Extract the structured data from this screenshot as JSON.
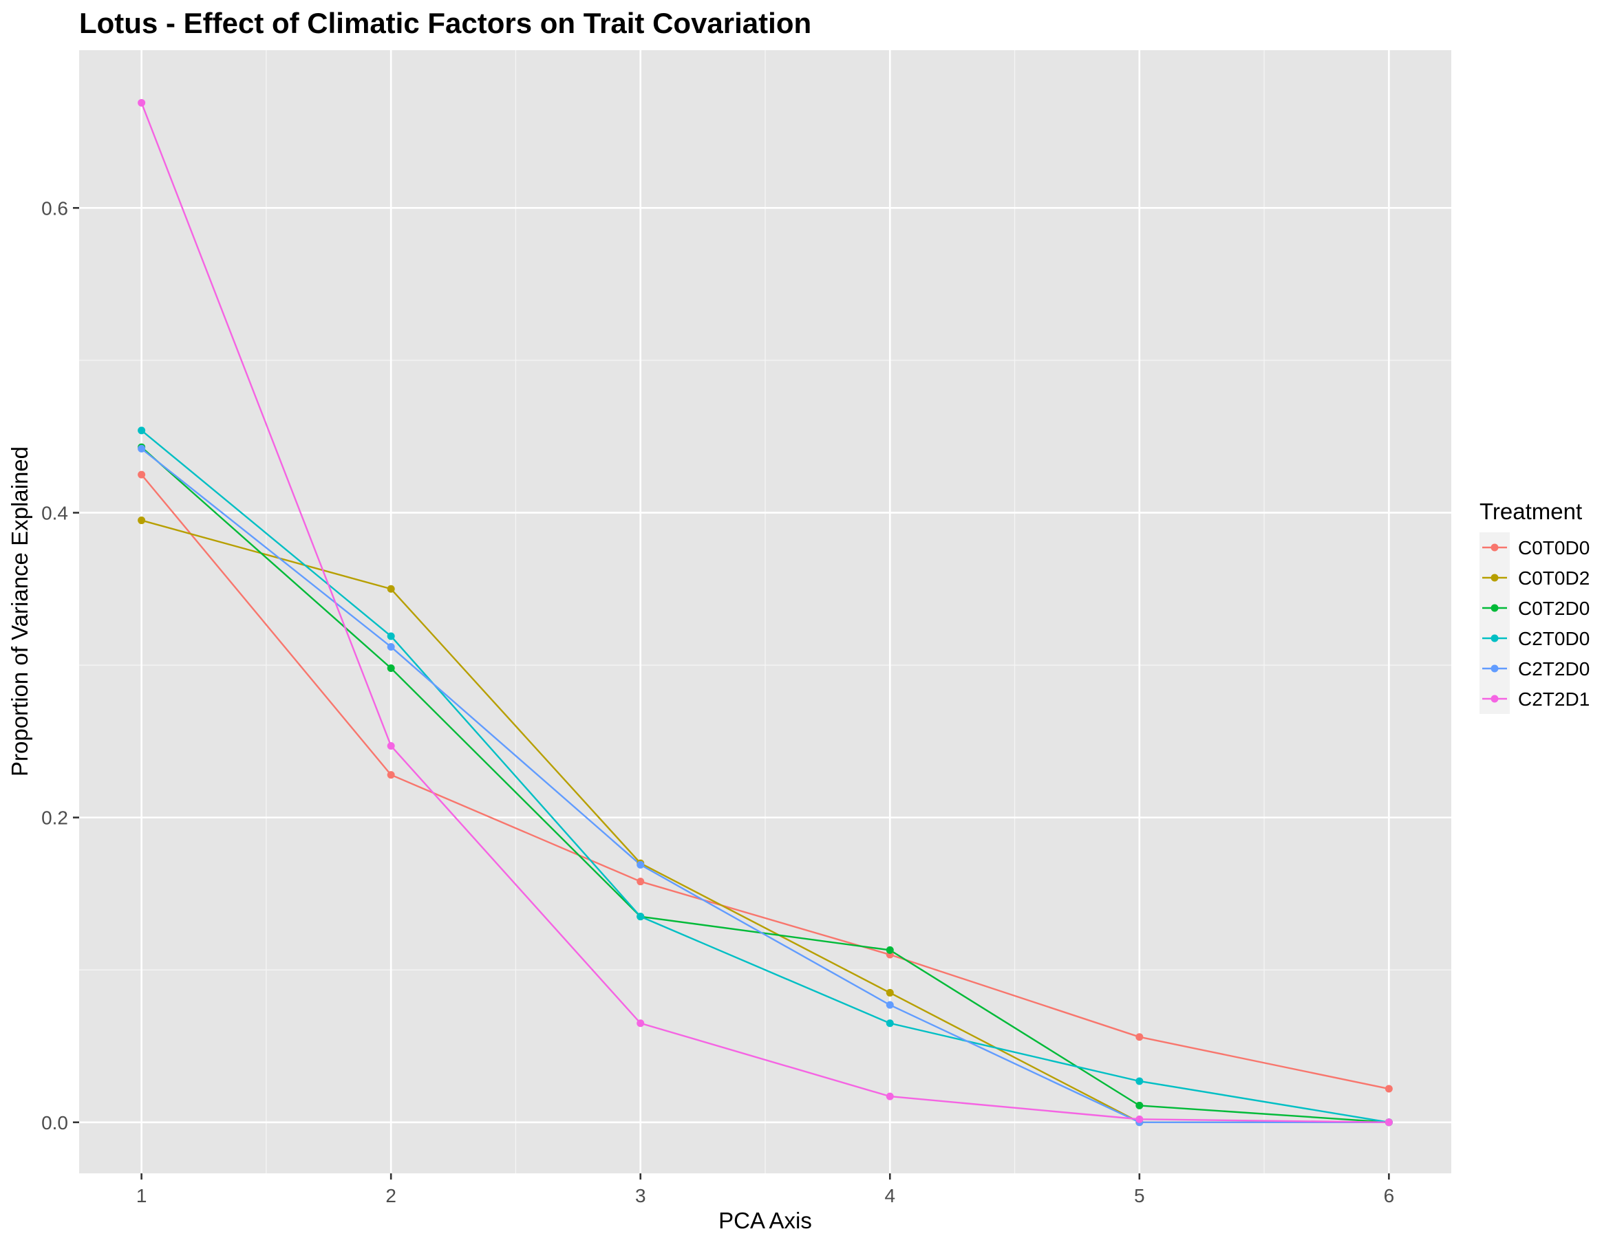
{
  "chart_data": {
    "type": "line",
    "title": "Lotus - Effect of Climatic Factors on Trait Covariation",
    "xlabel": "PCA Axis",
    "ylabel": "Proportion of Variance Explained",
    "x": [
      1,
      2,
      3,
      4,
      5,
      6
    ],
    "x_tick_labels": [
      "1",
      "2",
      "3",
      "4",
      "5",
      "6"
    ],
    "y_ticks": [
      0.0,
      0.2,
      0.4,
      0.6
    ],
    "y_tick_labels": [
      "0.0",
      "0.2",
      "0.4",
      "0.6"
    ],
    "xlim": [
      0.75,
      6.25
    ],
    "ylim": [
      -0.0335,
      0.7035
    ],
    "grid": true,
    "background": "#e5e5e5",
    "legend_title": "Treatment",
    "legend_position": "right",
    "series": [
      {
        "name": "C0T0D0",
        "color": "#F8766D",
        "values": [
          0.425,
          0.228,
          0.158,
          0.11,
          0.056,
          0.022
        ]
      },
      {
        "name": "C0T0D2",
        "color": "#B79F00",
        "values": [
          0.395,
          0.35,
          0.17,
          0.085,
          0.0,
          0.0
        ]
      },
      {
        "name": "C0T2D0",
        "color": "#00BA38",
        "values": [
          0.443,
          0.298,
          0.135,
          0.113,
          0.011,
          0.0
        ]
      },
      {
        "name": "C2T0D0",
        "color": "#00BFC4",
        "values": [
          0.454,
          0.319,
          0.135,
          0.065,
          0.027,
          0.0
        ]
      },
      {
        "name": "C2T2D0",
        "color": "#619CFF",
        "values": [
          0.442,
          0.312,
          0.169,
          0.077,
          0.0,
          0.0
        ]
      },
      {
        "name": "C2T2D1",
        "color": "#F564E3",
        "values": [
          0.669,
          0.247,
          0.065,
          0.017,
          0.002,
          0.0
        ]
      }
    ]
  }
}
